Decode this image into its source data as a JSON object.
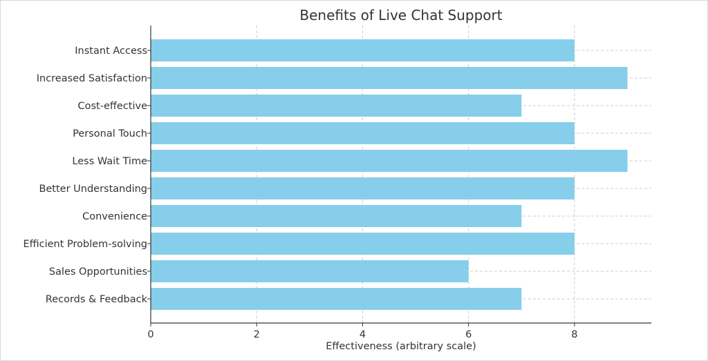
{
  "chart_data": {
    "type": "bar",
    "orientation": "horizontal",
    "title": "Benefits of Live Chat Support",
    "xlabel": "Effectiveness (arbitrary scale)",
    "ylabel": "",
    "xlim": [
      0,
      9.45
    ],
    "xticks": [
      0,
      2,
      4,
      6,
      8
    ],
    "grid": true,
    "bar_color": "#87ceeb",
    "categories": [
      "Instant Access",
      "Increased Satisfaction",
      "Cost-effective",
      "Personal Touch",
      "Less Wait Time",
      "Better Understanding",
      "Convenience",
      "Efficient Problem-solving",
      "Sales Opportunities",
      "Records & Feedback"
    ],
    "values": [
      8,
      9,
      7,
      8,
      9,
      8,
      7,
      8,
      6,
      7
    ]
  }
}
